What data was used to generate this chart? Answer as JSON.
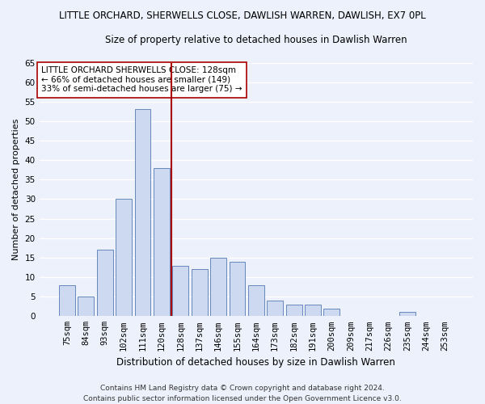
{
  "title": "LITTLE ORCHARD, SHERWELLS CLOSE, DAWLISH WARREN, DAWLISH, EX7 0PL",
  "subtitle": "Size of property relative to detached houses in Dawlish Warren",
  "xlabel": "Distribution of detached houses by size in Dawlish Warren",
  "ylabel": "Number of detached properties",
  "categories": [
    "75sqm",
    "84sqm",
    "93sqm",
    "102sqm",
    "111sqm",
    "120sqm",
    "128sqm",
    "137sqm",
    "146sqm",
    "155sqm",
    "164sqm",
    "173sqm",
    "182sqm",
    "191sqm",
    "200sqm",
    "209sqm",
    "217sqm",
    "226sqm",
    "235sqm",
    "244sqm",
    "253sqm"
  ],
  "values": [
    8,
    5,
    17,
    30,
    53,
    38,
    13,
    12,
    15,
    14,
    8,
    4,
    3,
    3,
    2,
    0,
    0,
    0,
    1,
    0,
    0
  ],
  "bar_color": "#ccd9f0",
  "bar_edge_color": "#6688bb",
  "vline_x": 5.5,
  "vline_color": "#aa0000",
  "ylim": [
    0,
    65
  ],
  "yticks": [
    0,
    5,
    10,
    15,
    20,
    25,
    30,
    35,
    40,
    45,
    50,
    55,
    60,
    65
  ],
  "legend_text_line1": "LITTLE ORCHARD SHERWELLS CLOSE: 128sqm",
  "legend_text_line2": "← 66% of detached houses are smaller (149)",
  "legend_text_line3": "33% of semi-detached houses are larger (75) →",
  "legend_box_color": "#ffffff",
  "legend_box_edge": "#aa0000",
  "footer_line1": "Contains HM Land Registry data © Crown copyright and database right 2024.",
  "footer_line2": "Contains public sector information licensed under the Open Government Licence v3.0.",
  "bg_color": "#edf1fb",
  "grid_color": "#ffffff",
  "title_fontsize": 8.5,
  "subtitle_fontsize": 8.5,
  "xlabel_fontsize": 8.5,
  "ylabel_fontsize": 8,
  "tick_fontsize": 7.5,
  "legend_fontsize": 7.5,
  "footer_fontsize": 6.5,
  "bar_width": 0.85
}
